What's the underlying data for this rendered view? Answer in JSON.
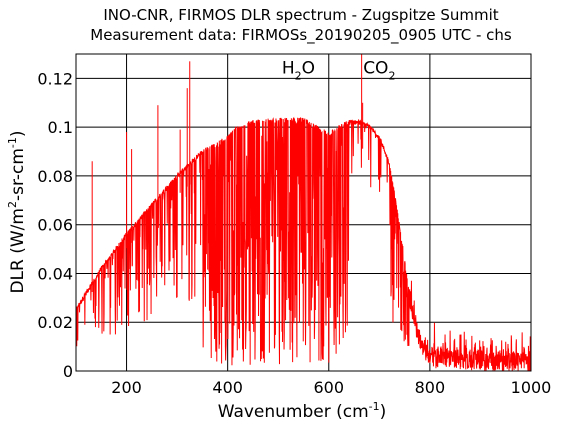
{
  "chart_data": {
    "type": "line",
    "title": "INO-CNR, FIRMOS DLR spectrum - Zugspitze Summit",
    "subtitle": "Measurement data: FIRMOSs_20190205_0905 UTC - chs",
    "xlabel": {
      "main": "Wavenumber (cm",
      "sup": "-1",
      "end": ")"
    },
    "ylabel": {
      "part1": "DLR (W/m",
      "sup1": "2",
      "part2": "-sr-cm",
      "sup2": "-1",
      "end": ")"
    },
    "xlim": [
      100,
      1000
    ],
    "ylim": [
      0,
      0.13
    ],
    "grid": true,
    "x_ticks": [
      200,
      400,
      600,
      800,
      1000
    ],
    "x_tick_labels": [
      "200",
      "400",
      "600",
      "800",
      "1000"
    ],
    "y_ticks": [
      0,
      0.02,
      0.04,
      0.06,
      0.08,
      0.1,
      0.12
    ],
    "y_tick_labels": [
      "0",
      "0.02",
      "0.04",
      "0.06",
      "0.08",
      "0.1",
      "0.12"
    ],
    "annotations": [
      {
        "text": "H",
        "sub": "2",
        "rest": "O",
        "x": 540,
        "y": 0.122
      },
      {
        "text": "CO",
        "sub": "2",
        "rest": "",
        "x": 700,
        "y": 0.122
      }
    ],
    "series": [
      {
        "color": "#ff0000",
        "envelope_x": [
          100,
          120,
          150,
          200,
          250,
          300,
          350,
          380,
          400,
          420,
          450,
          500,
          550,
          600,
          620,
          640,
          660,
          680,
          700,
          720,
          740,
          760,
          780,
          800,
          850,
          900,
          950,
          1000
        ],
        "envelope_y": [
          0.025,
          0.032,
          0.042,
          0.056,
          0.068,
          0.08,
          0.09,
          0.093,
          0.096,
          0.1,
          0.102,
          0.103,
          0.103,
          0.097,
          0.1,
          0.102,
          0.102,
          0.1,
          0.096,
          0.085,
          0.06,
          0.03,
          0.012,
          0.006,
          0.005,
          0.004,
          0.004,
          0.004
        ],
        "absorption_lines": [
          {
            "x": 132,
            "y": 0.086
          },
          {
            "x": 200,
            "y": 0.098
          },
          {
            "x": 210,
            "y": 0.091
          },
          {
            "x": 262,
            "y": 0.109
          },
          {
            "x": 306,
            "y": 0.099
          },
          {
            "x": 320,
            "y": 0.116
          },
          {
            "x": 325,
            "y": 0.127
          },
          {
            "x": 665,
            "y": 0.13
          },
          {
            "x": 667,
            "y": 0.11
          }
        ]
      }
    ]
  }
}
